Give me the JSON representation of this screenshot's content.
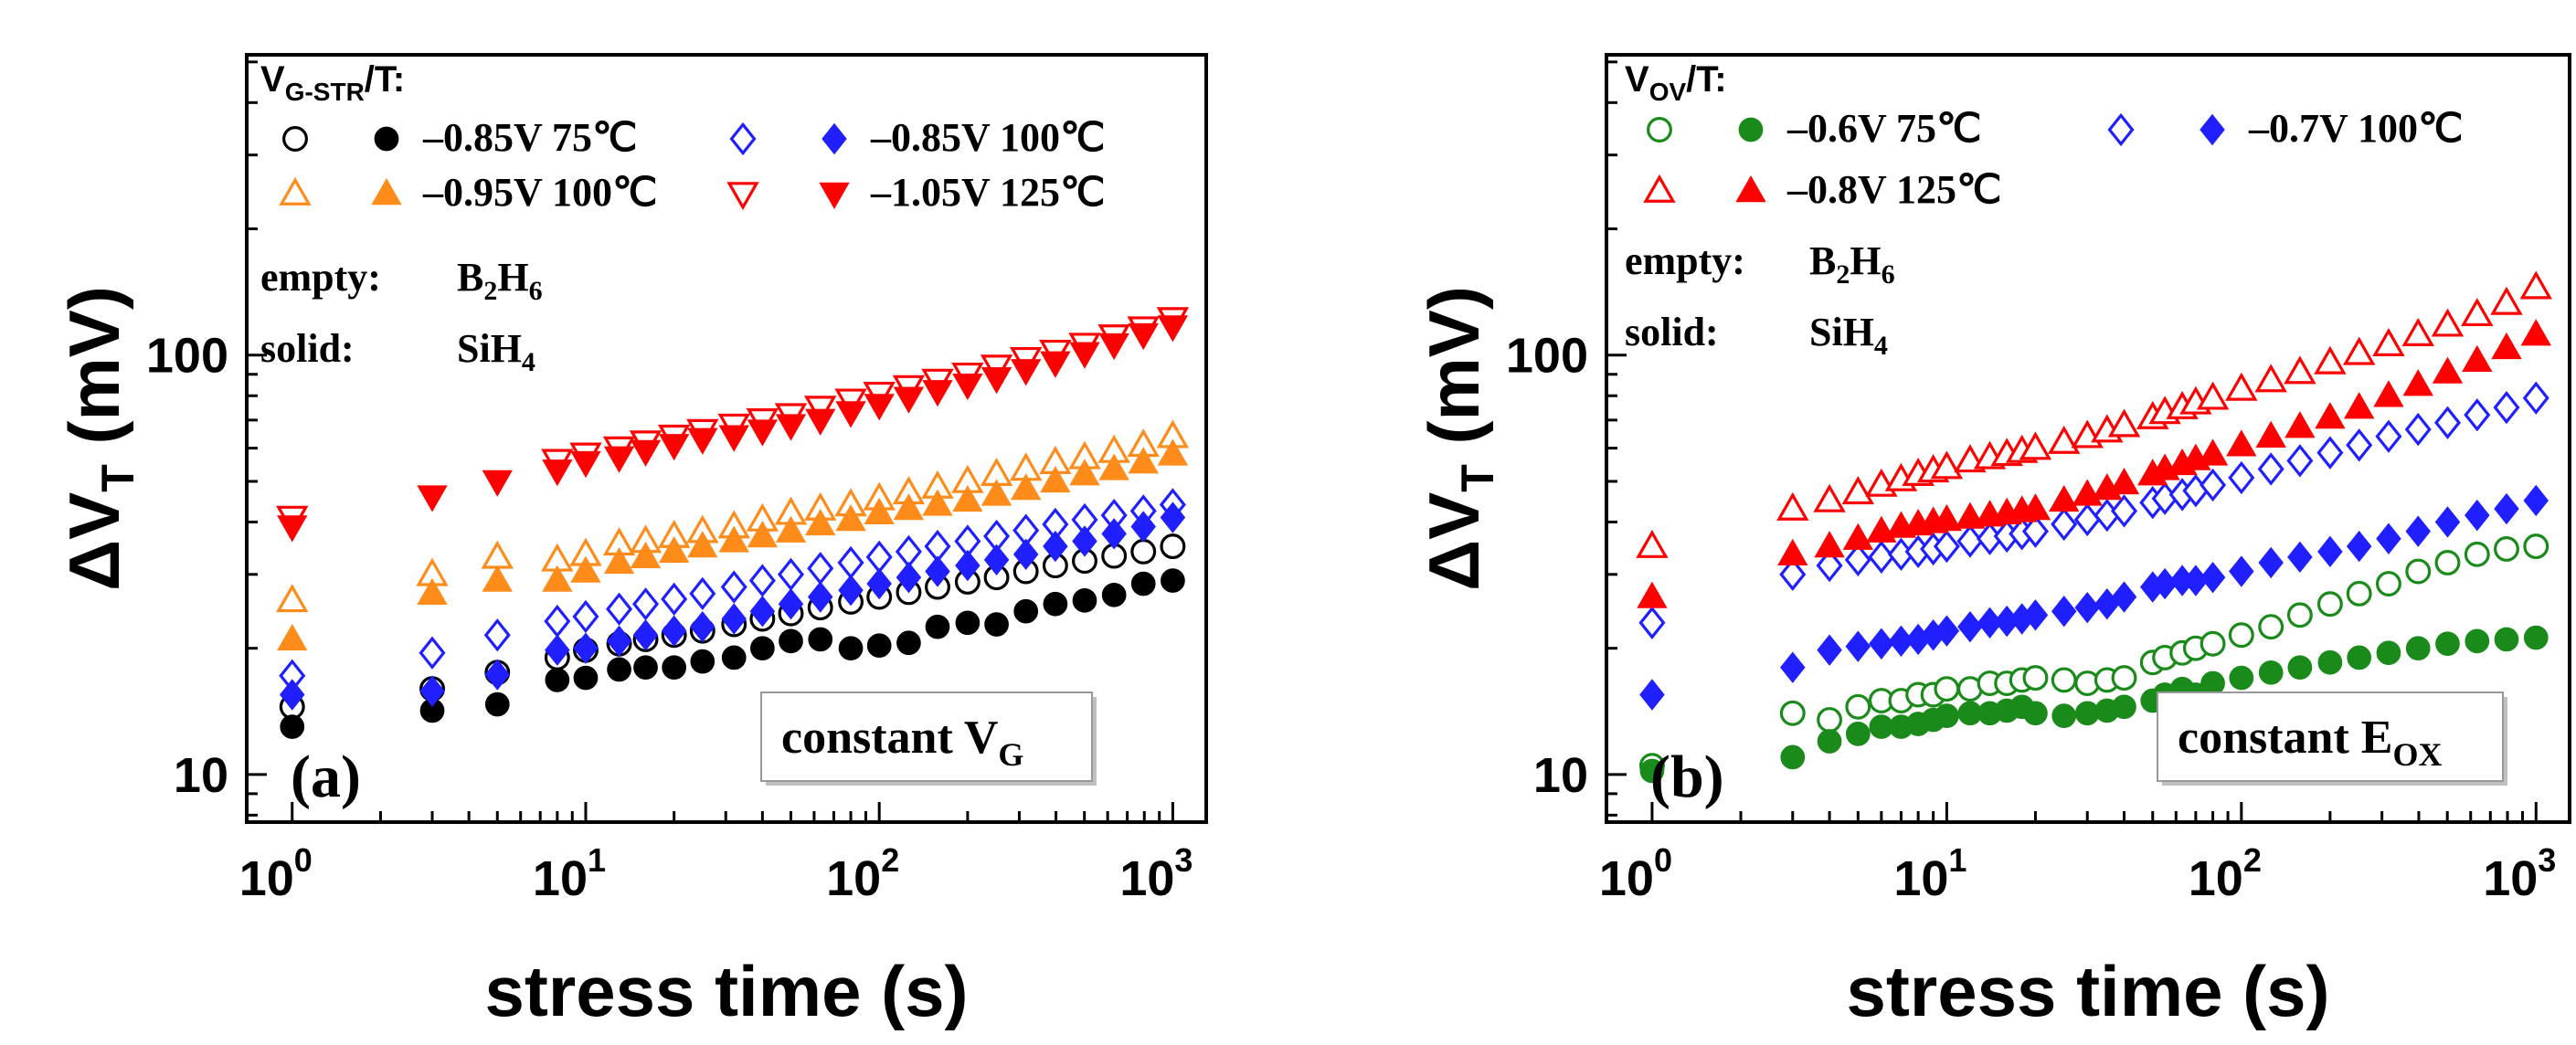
{
  "chart_data": [
    {
      "type": "scatter",
      "panel_label": "(a)",
      "xlabel": "stress time (s)",
      "ylabel": "ΔV",
      "ylabel_sub": "T",
      "ylabel_unit": "(mV)",
      "x_scale": "log",
      "y_scale": "log",
      "xlim": [
        0.7,
        1300
      ],
      "ylim": [
        7.7,
        520
      ],
      "x_ticks": [
        {
          "base": "10",
          "exp": "0",
          "value": 1
        },
        {
          "base": "10",
          "exp": "1",
          "value": 10
        },
        {
          "base": "10",
          "exp": "2",
          "value": 100
        },
        {
          "base": "10",
          "exp": "3",
          "value": 1000
        }
      ],
      "y_ticks": [
        {
          "label": "10",
          "value": 10
        },
        {
          "label": "100",
          "value": 100
        }
      ],
      "legend_title": "V",
      "legend_title_sub": "G-STR",
      "legend_title_suffix": "/T:",
      "legend_rows": [
        [
          "–0.85V 75℃",
          "–0.85V 100℃"
        ],
        [
          "–0.95V 100℃",
          "–1.05V 125℃"
        ]
      ],
      "note_empty_label": "empty:",
      "note_empty_value": "B",
      "note_empty_sub1": "2",
      "note_empty_value2": "H",
      "note_empty_sub2": "6",
      "note_solid_label": "solid:",
      "note_solid_value": "SiH",
      "note_solid_sub": "4",
      "box_text": "constant V",
      "box_sub": "G",
      "series": [
        {
          "name": "–0.85V 75℃ B2H6",
          "marker": "circle",
          "filled": false,
          "color": "#000000",
          "x": [
            1,
            3,
            5,
            8,
            10,
            13,
            16,
            20,
            25,
            32,
            40,
            50,
            63,
            80,
            100,
            126,
            158,
            200,
            251,
            316,
            398,
            501,
            631,
            794,
            1000
          ],
          "y": [
            14.5,
            16,
            17.5,
            19,
            19.8,
            20.5,
            21,
            21.5,
            22,
            22.8,
            23.5,
            24.2,
            25,
            25.8,
            26.5,
            27.2,
            28,
            28.8,
            29.5,
            30.5,
            31.5,
            32.3,
            33.2,
            34,
            35
          ]
        },
        {
          "name": "–0.85V 75℃ SiH4",
          "marker": "circle",
          "filled": true,
          "color": "#000000",
          "x": [
            1,
            3,
            5,
            8,
            10,
            13,
            16,
            20,
            25,
            32,
            40,
            50,
            63,
            80,
            100,
            126,
            158,
            200,
            251,
            316,
            398,
            501,
            631,
            794,
            1000
          ],
          "y": [
            13,
            14.2,
            14.7,
            16.8,
            17,
            17.8,
            18,
            18,
            18.6,
            19,
            20,
            20.8,
            21,
            20,
            20.3,
            20.6,
            22.5,
            23,
            22.8,
            24.5,
            25.5,
            26,
            26.8,
            28.5,
            29
          ]
        },
        {
          "name": "–0.85V 100℃ B2H6",
          "marker": "diamond",
          "filled": false,
          "color": "#1f1fff",
          "x": [
            1,
            3,
            5,
            8,
            10,
            13,
            16,
            20,
            25,
            32,
            40,
            50,
            63,
            80,
            100,
            126,
            158,
            200,
            251,
            316,
            398,
            501,
            631,
            794,
            1000
          ],
          "y": [
            17.2,
            19.5,
            21.5,
            23.2,
            23.8,
            24.8,
            25.5,
            26.2,
            27,
            28,
            29,
            30,
            31,
            32,
            33,
            34,
            35,
            36,
            37,
            38.2,
            39.5,
            40.5,
            41.5,
            42.5,
            44
          ]
        },
        {
          "name": "–0.85V 100℃ SiH4",
          "marker": "diamond",
          "filled": true,
          "color": "#1f1fff",
          "x": [
            1,
            3,
            5,
            8,
            10,
            13,
            16,
            20,
            25,
            32,
            40,
            50,
            63,
            80,
            100,
            126,
            158,
            200,
            251,
            316,
            398,
            501,
            631,
            794,
            1000
          ],
          "y": [
            15.5,
            15.8,
            17.3,
            19.8,
            20,
            20.8,
            21.5,
            22,
            22.5,
            23.5,
            24.5,
            25.5,
            26.5,
            27.5,
            28.5,
            29.5,
            30.5,
            31.5,
            32.5,
            33.5,
            35,
            36,
            37.5,
            39,
            41
          ]
        },
        {
          "name": "–0.95V 100℃ B2H6",
          "marker": "triangle-up",
          "filled": false,
          "color": "#ff8c1a",
          "x": [
            1,
            3,
            5,
            8,
            10,
            13,
            16,
            20,
            25,
            32,
            40,
            50,
            63,
            80,
            100,
            126,
            158,
            200,
            251,
            316,
            398,
            501,
            631,
            794,
            1000
          ],
          "y": [
            26,
            30,
            33,
            32.5,
            33.5,
            35.5,
            36,
            37,
            38,
            39,
            40.5,
            42,
            43,
            44,
            45.5,
            47,
            48.5,
            50,
            52,
            53.5,
            55.5,
            57,
            59,
            61,
            64
          ]
        },
        {
          "name": "–0.95V 100℃ SiH4",
          "marker": "triangle-up",
          "filled": true,
          "color": "#ff8c1a",
          "x": [
            1,
            3,
            5,
            8,
            10,
            13,
            16,
            20,
            25,
            32,
            40,
            50,
            63,
            80,
            100,
            126,
            158,
            200,
            251,
            316,
            398,
            501,
            631,
            794,
            1000
          ],
          "y": [
            21,
            27,
            29,
            29,
            30.5,
            32,
            33,
            34,
            35,
            36,
            37,
            38,
            39.5,
            40.5,
            42,
            43,
            44,
            45,
            46.5,
            48,
            50,
            52,
            53.5,
            55.5,
            58
          ]
        },
        {
          "name": "–1.05V 125℃ B2H6",
          "marker": "triangle-down",
          "filled": false,
          "color": "#ff0000",
          "x": [
            1,
            8,
            10,
            13,
            16,
            20,
            25,
            32,
            40,
            50,
            63,
            80,
            100,
            126,
            158,
            200,
            251,
            316,
            398,
            501,
            631,
            794,
            1000
          ],
          "y": [
            41,
            56,
            58,
            60,
            62,
            64,
            66,
            68,
            70,
            72,
            75,
            78,
            81,
            84,
            87,
            90,
            94,
            98,
            102,
            106,
            111,
            116,
            122
          ]
        },
        {
          "name": "–1.05V 125℃ SiH4",
          "marker": "triangle-down",
          "filled": true,
          "color": "#ff0000",
          "x": [
            1,
            3,
            5,
            8,
            10,
            13,
            16,
            20,
            25,
            32,
            40,
            50,
            63,
            80,
            100,
            126,
            158,
            200,
            251,
            316,
            398,
            501,
            631,
            794,
            1000
          ],
          "y": [
            39,
            46,
            50,
            53,
            55.5,
            57,
            59,
            61,
            63,
            64,
            66,
            68,
            70,
            73,
            76,
            79,
            82,
            85,
            88,
            92,
            96,
            101,
            106,
            112,
            117
          ]
        }
      ]
    },
    {
      "type": "scatter",
      "panel_label": "(b)",
      "xlabel": "stress time (s)",
      "ylabel": "ΔV",
      "ylabel_sub": "T",
      "ylabel_unit": "(mV)",
      "x_scale": "log",
      "y_scale": "log",
      "xlim": [
        0.7,
        1300
      ],
      "ylim": [
        7.7,
        520
      ],
      "x_ticks": [
        {
          "base": "10",
          "exp": "0",
          "value": 1
        },
        {
          "base": "10",
          "exp": "1",
          "value": 10
        },
        {
          "base": "10",
          "exp": "2",
          "value": 100
        },
        {
          "base": "10",
          "exp": "3",
          "value": 1000
        }
      ],
      "y_ticks": [
        {
          "label": "10",
          "value": 10
        },
        {
          "label": "100",
          "value": 100
        }
      ],
      "legend_title": "V",
      "legend_title_sub": "OV",
      "legend_title_suffix": "/T:",
      "legend_rows": [
        [
          "–0.6V 75℃",
          "–0.7V 100℃"
        ],
        [
          "–0.8V 125℃"
        ]
      ],
      "note_empty_label": "empty:",
      "note_empty_value": "B",
      "note_empty_sub1": "2",
      "note_empty_value2": "H",
      "note_empty_sub2": "6",
      "note_solid_label": "solid:",
      "note_solid_value": "SiH",
      "note_solid_sub": "4",
      "box_text": "constant E",
      "box_sub": "OX",
      "series": [
        {
          "name": "–0.6V 75℃ B2H6",
          "marker": "circle",
          "filled": false,
          "color": "#1a8a1a",
          "x": [
            1,
            3,
            4,
            5,
            6,
            7,
            8,
            9,
            10,
            12,
            14,
            16,
            18,
            20,
            25,
            30,
            35,
            40,
            50,
            55,
            63,
            70,
            80,
            100,
            126,
            158,
            200,
            251,
            316,
            398,
            501,
            631,
            794,
            1000
          ],
          "y": [
            10.5,
            14,
            13.5,
            14.5,
            15,
            15,
            15.5,
            15.5,
            16,
            16,
            16.5,
            16.5,
            16.8,
            17,
            16.8,
            16.5,
            16.8,
            17,
            18.5,
            19,
            19.5,
            20,
            20.5,
            21.5,
            22.5,
            24,
            25.5,
            27,
            28.5,
            30.5,
            32,
            33.5,
            34.5,
            35
          ]
        },
        {
          "name": "–0.6V 75℃ SiH4",
          "marker": "circle",
          "filled": true,
          "color": "#1a8a1a",
          "x": [
            1,
            3,
            4,
            5,
            6,
            7,
            8,
            9,
            10,
            12,
            14,
            16,
            18,
            20,
            25,
            30,
            35,
            40,
            50,
            55,
            63,
            70,
            80,
            100,
            126,
            158,
            200,
            251,
            316,
            398,
            501,
            631,
            794,
            1000
          ],
          "y": [
            10.2,
            11,
            12,
            12.5,
            13,
            13,
            13.2,
            13.5,
            13.8,
            14,
            14,
            14.2,
            14.5,
            14,
            13.8,
            14,
            14.2,
            14.5,
            15,
            15.5,
            16,
            15.5,
            16.5,
            17,
            17.5,
            18,
            18.5,
            19,
            19.5,
            20,
            20.5,
            20.8,
            21,
            21.2
          ]
        },
        {
          "name": "–0.7V 100℃ B2H6",
          "marker": "diamond",
          "filled": false,
          "color": "#1f1fff",
          "x": [
            1,
            3,
            4,
            5,
            6,
            7,
            8,
            9,
            10,
            12,
            14,
            16,
            18,
            20,
            25,
            30,
            35,
            40,
            50,
            55,
            63,
            70,
            80,
            100,
            126,
            158,
            200,
            251,
            316,
            398,
            501,
            631,
            794,
            1000
          ],
          "y": [
            23,
            30,
            31.5,
            32.5,
            33,
            33.5,
            34,
            34.5,
            35,
            36,
            36.5,
            37,
            37.5,
            38,
            39.5,
            40.5,
            41.5,
            42.5,
            44.5,
            45.5,
            46.5,
            47.5,
            49,
            51,
            53.5,
            56,
            58.5,
            61,
            64,
            66.5,
            69,
            72,
            75,
            79
          ]
        },
        {
          "name": "–0.7V 100℃ SiH4",
          "marker": "diamond",
          "filled": true,
          "color": "#1f1fff",
          "x": [
            1,
            3,
            4,
            5,
            6,
            7,
            8,
            9,
            10,
            12,
            14,
            16,
            18,
            20,
            25,
            30,
            35,
            40,
            50,
            55,
            63,
            70,
            80,
            100,
            126,
            158,
            200,
            251,
            316,
            398,
            501,
            631,
            794,
            1000
          ],
          "y": [
            15.5,
            18,
            19.8,
            20.2,
            20.5,
            20.8,
            21,
            21.5,
            22,
            22.5,
            23,
            23.2,
            23.5,
            24,
            24.5,
            25,
            25.5,
            26.5,
            28,
            28.5,
            29,
            29,
            29.5,
            30.5,
            32,
            33,
            34,
            35,
            36.5,
            38,
            40,
            41.5,
            43,
            45
          ]
        },
        {
          "name": "–0.8V 125℃ B2H6",
          "marker": "triangle-up",
          "filled": false,
          "color": "#ff0000",
          "x": [
            1,
            3,
            4,
            5,
            6,
            7,
            8,
            9,
            10,
            12,
            14,
            16,
            18,
            20,
            25,
            30,
            35,
            40,
            50,
            55,
            63,
            70,
            80,
            100,
            126,
            158,
            200,
            251,
            316,
            398,
            501,
            631,
            794,
            1000
          ],
          "y": [
            35,
            43,
            45,
            47,
            49,
            50.5,
            52,
            53,
            54,
            56,
            57,
            58,
            59,
            60,
            62,
            64,
            66,
            68,
            71,
            73,
            75,
            77,
            79,
            83,
            87,
            91,
            96,
            101,
            106,
            112,
            118,
            125,
            133,
            145
          ]
        },
        {
          "name": "–0.8V 125℃ SiH4",
          "marker": "triangle-up",
          "filled": true,
          "color": "#ff0000",
          "x": [
            1,
            3,
            4,
            5,
            6,
            7,
            8,
            9,
            10,
            12,
            14,
            16,
            18,
            20,
            25,
            30,
            35,
            40,
            50,
            55,
            63,
            70,
            80,
            100,
            126,
            158,
            200,
            251,
            316,
            398,
            501,
            631,
            794,
            1000
          ],
          "y": [
            26.5,
            33.5,
            35,
            36.5,
            38,
            39,
            39.5,
            40,
            40.5,
            41,
            41.5,
            42,
            42.5,
            43,
            45,
            46.5,
            48,
            49.5,
            52,
            53.5,
            55,
            56.5,
            58,
            61,
            64,
            67.5,
            71,
            75,
            80,
            85,
            91,
            97,
            104,
            112
          ]
        }
      ]
    }
  ]
}
